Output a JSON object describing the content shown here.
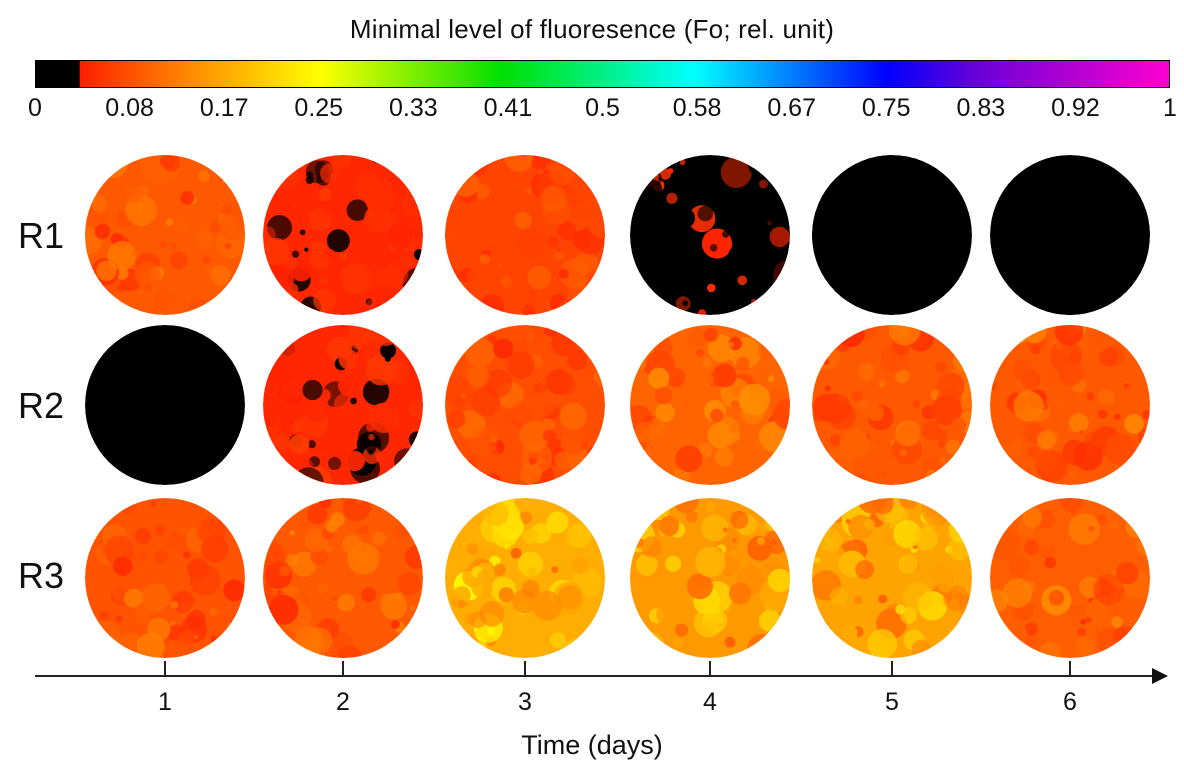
{
  "title": "Minimal level of fluoresence  (Fo; rel. unit)",
  "colorbar": {
    "ticks": [
      "0",
      "0.08",
      "0.17",
      "0.25",
      "0.33",
      "0.41",
      "0.5",
      "0.58",
      "0.67",
      "0.75",
      "0.83",
      "0.92",
      "1"
    ]
  },
  "rows": [
    {
      "label": "R1",
      "fo_levels": [
        0.09,
        0.045,
        0.07,
        0.03,
        0.015,
        0.01
      ]
    },
    {
      "label": "R2",
      "fo_levels": [
        0.01,
        0.045,
        0.08,
        0.1,
        0.09,
        0.09
      ]
    },
    {
      "label": "R3",
      "fo_levels": [
        0.085,
        0.09,
        0.17,
        0.15,
        0.16,
        0.095
      ]
    }
  ],
  "xaxis": {
    "ticks": [
      "1",
      "2",
      "3",
      "4",
      "5",
      "6"
    ],
    "title": "Time (days)"
  }
}
